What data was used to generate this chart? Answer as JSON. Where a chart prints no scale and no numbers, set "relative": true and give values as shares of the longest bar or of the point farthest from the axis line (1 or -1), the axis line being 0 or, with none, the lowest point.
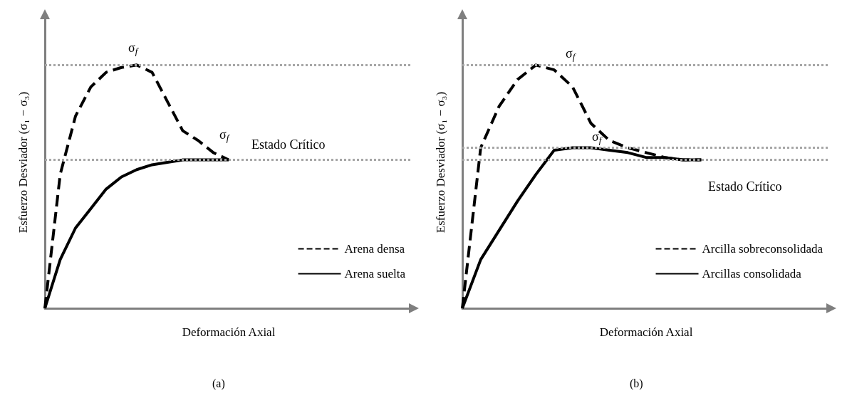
{
  "chart_data": [
    {
      "type": "line",
      "relative": true,
      "xlabel": "Deformación Axial",
      "ylabel": "Esfuerzo Desviador (σ₁ − σ₃)",
      "categories": [
        null,
        null,
        null,
        null,
        null,
        null,
        null,
        null,
        null,
        null,
        null,
        null,
        null,
        null,
        null,
        null,
        null,
        null,
        null,
        null,
        null,
        null,
        null,
        null,
        null
      ],
      "series": [
        {
          "name": "Arena densa",
          "color": "#000000",
          "line_style": "dashed",
          "values": [
            0,
            0.55,
            0.79,
            0.91,
            0.97,
            0.99,
            1.0,
            0.97,
            0.85,
            0.73,
            0.69,
            0.64,
            0.61,
            null,
            null,
            null,
            null,
            null,
            null,
            null,
            null,
            null,
            null,
            null,
            null
          ]
        },
        {
          "name": "Arena suelta",
          "color": "#000000",
          "line_style": "solid",
          "values": [
            0,
            0.2,
            0.33,
            0.41,
            0.49,
            0.54,
            0.57,
            0.59,
            0.6,
            0.61,
            0.61,
            0.61,
            0.61,
            null,
            null,
            null,
            null,
            null,
            null,
            null,
            null,
            null,
            null,
            null,
            null
          ]
        }
      ],
      "ref_lines": [
        {
          "axis": "y",
          "value": 1.0,
          "color": "#a6a6a6",
          "line_style": "dotted"
        },
        {
          "axis": "y",
          "value": 0.61,
          "color": "#a6a6a6",
          "line_style": "dotted"
        }
      ],
      "annotations": [
        "σ$_{f}$",
        "σ$_{f}$",
        "Estado Crítico",
        "(a)"
      ],
      "marker": "none",
      "legend": "bottom right",
      "grid": false
    },
    {
      "type": "line",
      "relative": true,
      "xlabel": "Deformación Axial",
      "ylabel": "Esfuerzo Desviador (σ₁ − σ₃)",
      "categories": [
        null,
        null,
        null,
        null,
        null,
        null,
        null,
        null,
        null,
        null,
        null,
        null,
        null,
        null,
        null,
        null,
        null,
        null,
        null,
        null,
        null
      ],
      "series": [
        {
          "name": "Arcilla sobreconsolidada",
          "color": "#000000",
          "line_style": "dashed",
          "values": [
            0,
            0.66,
            0.83,
            0.94,
            1.0,
            0.98,
            0.91,
            0.76,
            0.69,
            0.66,
            0.64,
            0.62,
            0.61,
            0.61,
            null,
            null,
            null,
            null,
            null,
            null,
            null
          ]
        },
        {
          "name": "Arcillas consolidada",
          "color": "#000000",
          "line_style": "solid",
          "values": [
            0,
            0.2,
            0.32,
            0.44,
            0.55,
            0.65,
            0.66,
            0.66,
            0.65,
            0.64,
            0.62,
            0.62,
            0.61,
            0.61,
            null,
            null,
            null,
            null,
            null,
            null,
            null
          ]
        }
      ],
      "ref_lines": [
        {
          "axis": "y",
          "value": 1.0,
          "color": "#a6a6a6",
          "line_style": "dotted"
        },
        {
          "axis": "y",
          "value": 0.66,
          "color": "#a6a6a6",
          "line_style": "dotted"
        },
        {
          "axis": "y",
          "value": 0.61,
          "color": "#a6a6a6",
          "line_style": "dotted"
        }
      ],
      "annotations": [
        "σ$_{f}$",
        "σ$_{f}$",
        "Estado Crítico",
        "(b)"
      ],
      "marker": "none",
      "legend": "bottom right",
      "grid": false
    }
  ]
}
